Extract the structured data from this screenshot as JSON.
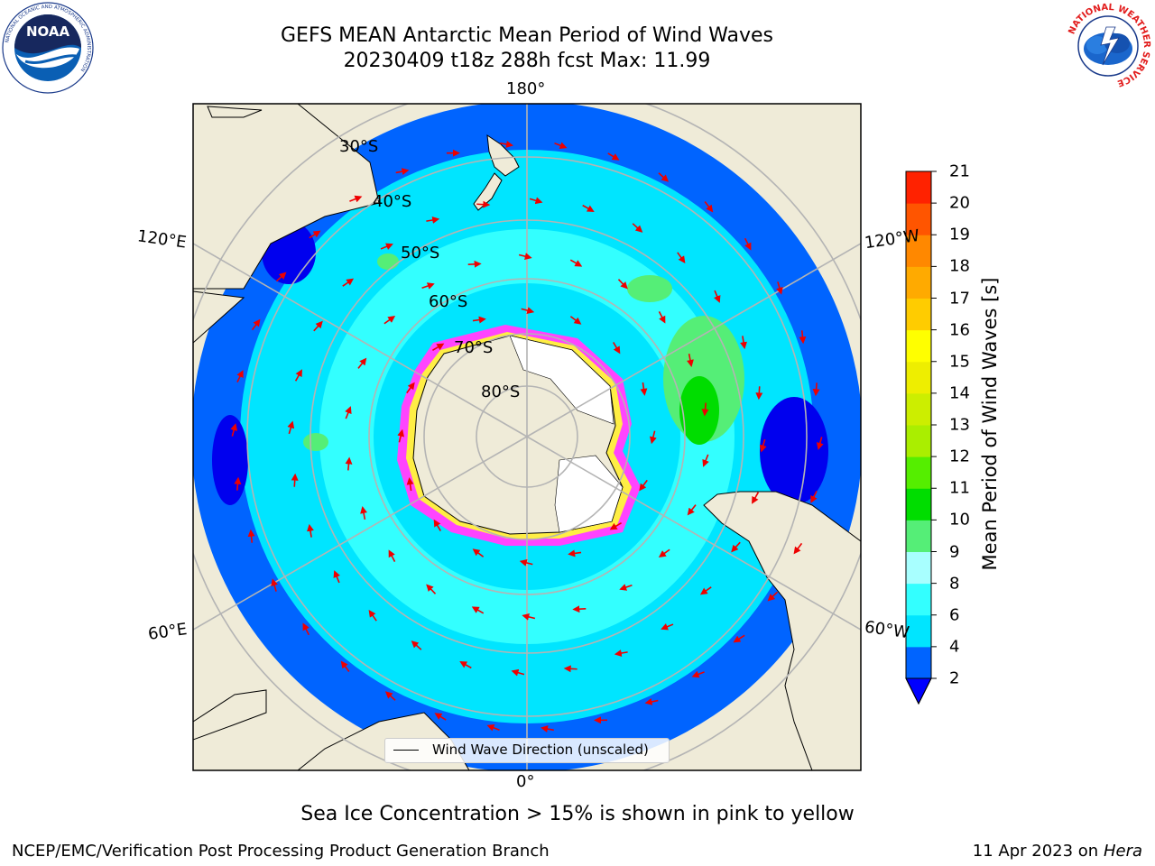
{
  "header": {
    "title_line1": "GEFS MEAN Antarctic Mean Period of Wind Waves",
    "title_line2": "20230409 t18z 288h fcst   Max: 11.99"
  },
  "map": {
    "projection": "south-polar-stereographic",
    "longitude_labels": {
      "top": "180°",
      "bottom": "0°",
      "upper_left": "120°E",
      "upper_right": "120°W",
      "lower_left": "60°E",
      "lower_right": "60°W"
    },
    "latitude_labels": [
      "30°S",
      "40°S",
      "50°S",
      "60°S",
      "70°S",
      "80°S"
    ],
    "colors": {
      "land": "#efebd8",
      "ocean_outer": "#0064ff",
      "ocean_mid": "#00e5ff",
      "ocean_light": "#33ffff",
      "ice": "#ff44ff",
      "arrow": "#ee0000",
      "grid": "#b4b4b4"
    },
    "legend_label": "Wind Wave Direction (unscaled)"
  },
  "colorbar": {
    "label": "Mean Period of Wind Waves [s]",
    "ticks": [
      "21",
      "20",
      "19",
      "18",
      "17",
      "16",
      "15",
      "14",
      "13",
      "12",
      "11",
      "10",
      "9",
      "8",
      "6",
      "4",
      "2"
    ],
    "levels": [
      2,
      4,
      6,
      8,
      9,
      10,
      11,
      12,
      13,
      14,
      15,
      16,
      17,
      18,
      19,
      20,
      21
    ],
    "colors": [
      "#0064ff",
      "#00e5ff",
      "#33ffff",
      "#a8ffff",
      "#55ee77",
      "#00dd00",
      "#55ee00",
      "#aaee00",
      "#ccee00",
      "#eeee00",
      "#ffff00",
      "#ffcc00",
      "#ffaa00",
      "#ff8800",
      "#ff5500",
      "#ff2200"
    ],
    "under_color": "#0000ff"
  },
  "footer": {
    "ice_note": "Sea Ice Concentration > 15% is shown in pink to yellow",
    "producer": "NCEP/EMC/Verification Post Processing Product Generation Branch",
    "date": "11 Apr 2023 on",
    "machine": "Hera"
  },
  "logos": {
    "left": {
      "text": "NOAA",
      "ring_text": "NATIONAL OCEANIC AND ATMOSPHERIC ADMINISTRATION"
    },
    "right": {
      "ring_text": "NATIONAL WEATHER SERVICE"
    }
  }
}
